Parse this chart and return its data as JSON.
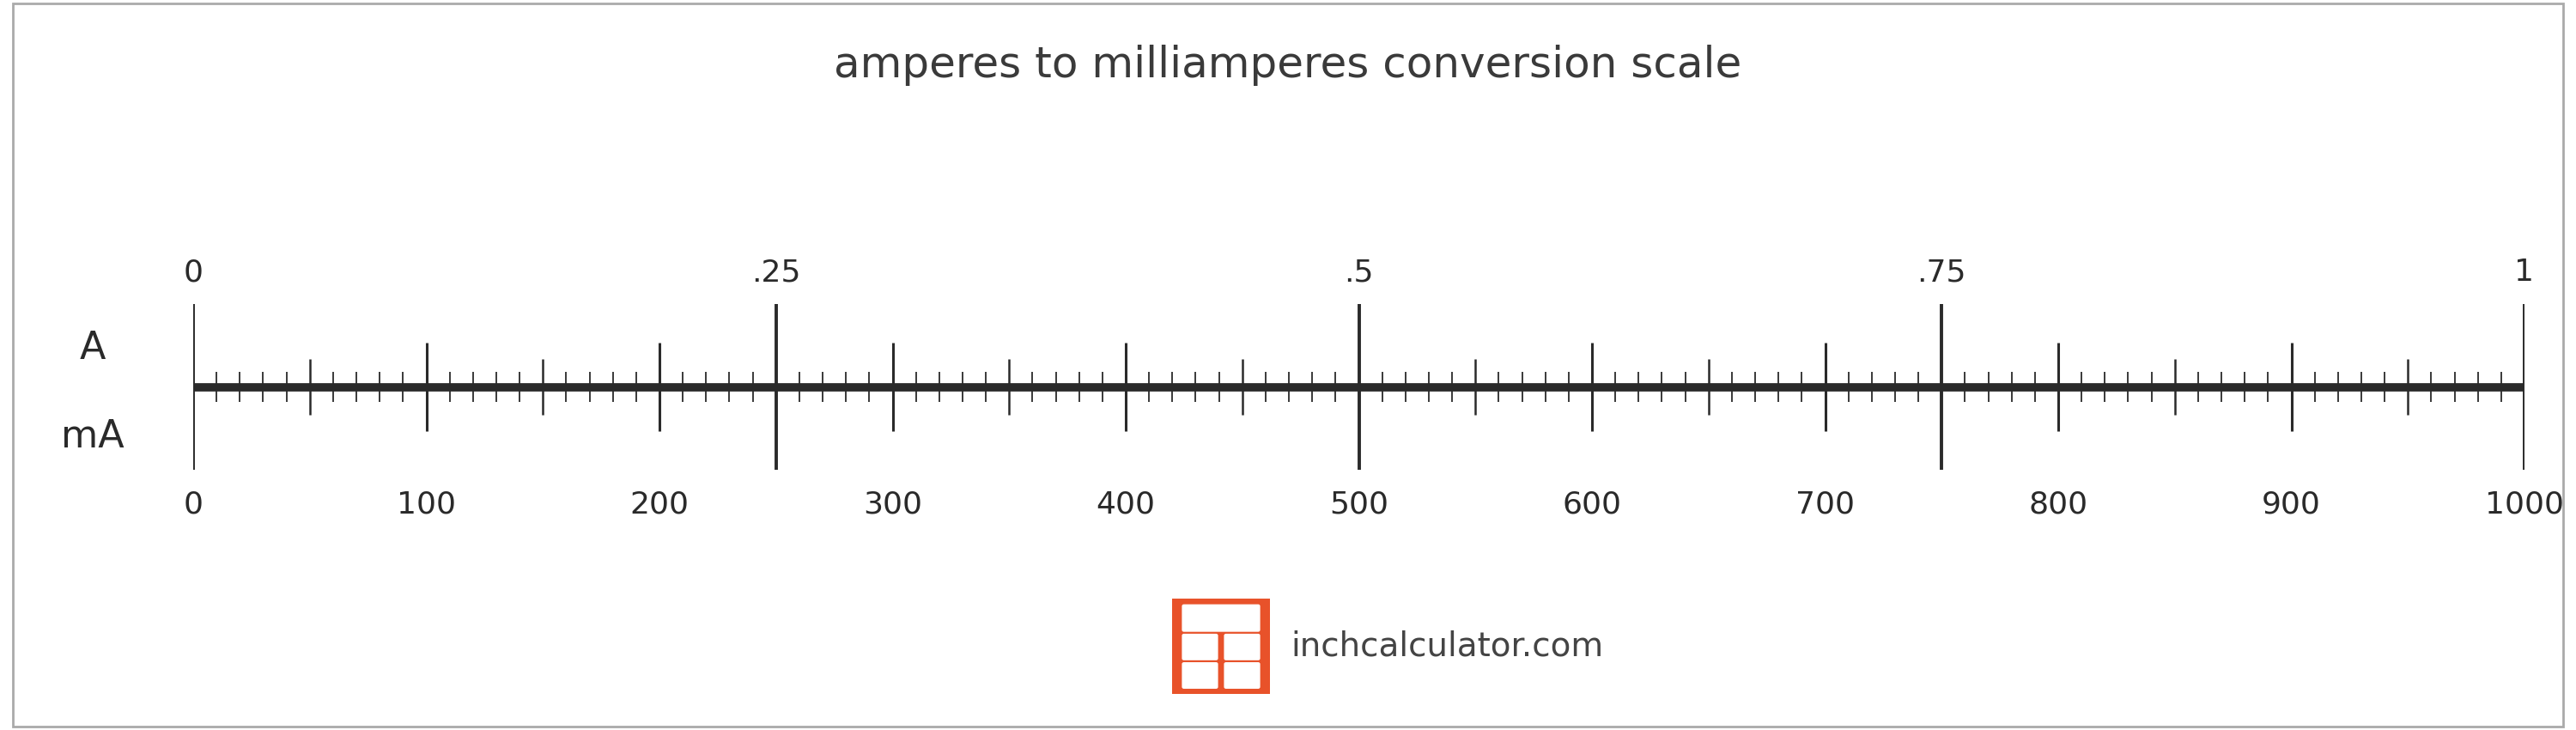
{
  "title": "amperes to milliamperes conversion scale",
  "title_fontsize": 36,
  "title_color": "#3a3a3a",
  "background_color": "#ffffff",
  "border_color": "#aaaaaa",
  "scale_line_color": "#2a2a2a",
  "scale_line_lw": 7,
  "tick_color": "#2a2a2a",
  "label_A": "A",
  "label_mA": "mA",
  "label_fontsize": 32,
  "A_ticks_major": [
    0,
    0.25,
    0.5,
    0.75,
    1.0
  ],
  "A_ticks_major_labels": [
    "0",
    ".25",
    ".5",
    ".75",
    "1"
  ],
  "mA_ticks_major": [
    0,
    100,
    200,
    300,
    400,
    500,
    600,
    700,
    800,
    900,
    1000
  ],
  "mA_ticks_major_labels": [
    "0",
    "100",
    "200",
    "300",
    "400",
    "500",
    "600",
    "700",
    "800",
    "900",
    "1000"
  ],
  "tick_label_fontsize": 26,
  "logo_color": "#e8522a",
  "logo_text": "inchcalculator.com",
  "logo_text_color": "#444444",
  "logo_fontsize": 28,
  "tick_small_upper": 0.055,
  "tick_medium_upper": 0.1,
  "tick_large_upper": 0.16,
  "tick_major_upper": 0.3,
  "tick_small_lower": 0.055,
  "tick_medium_lower": 0.1,
  "tick_large_lower": 0.16,
  "tick_major_lower": 0.3
}
